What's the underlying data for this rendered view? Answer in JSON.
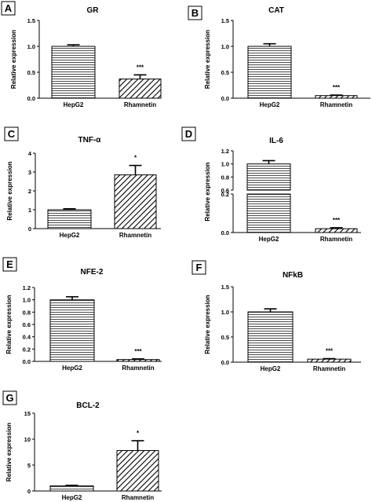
{
  "chart_data": [
    {
      "panel": "A",
      "type": "bar",
      "title": "GR",
      "ylabel": "Relative expression",
      "categories": [
        "HepG2",
        "Rhamnetin"
      ],
      "values": [
        1.0,
        0.37
      ],
      "errors": [
        0.03,
        0.08
      ],
      "patterns": [
        "horizontal",
        "diagonal"
      ],
      "significance": [
        "",
        "***"
      ],
      "ylim": [
        0,
        1.5
      ],
      "yticks": [
        "0.0",
        "0.5",
        "1.0",
        "1.5"
      ],
      "yticks_values": [
        0,
        0.5,
        1.0,
        1.5
      ]
    },
    {
      "panel": "B",
      "type": "bar",
      "title": "CAT",
      "ylabel": "Relative expression",
      "categories": [
        "HepG2",
        "Rhamnetin"
      ],
      "values": [
        1.0,
        0.05
      ],
      "errors": [
        0.05,
        0.01
      ],
      "patterns": [
        "horizontal",
        "diagonal"
      ],
      "significance": [
        "",
        "***"
      ],
      "ylim": [
        0,
        1.5
      ],
      "yticks": [
        "0.0",
        "0.5",
        "1.0",
        "1.5"
      ],
      "yticks_values": [
        0,
        0.5,
        1.0,
        1.5
      ]
    },
    {
      "panel": "C",
      "type": "bar",
      "title": "TNF-α",
      "ylabel": "Relative expression",
      "categories": [
        "HepG2",
        "Rhamnetin"
      ],
      "values": [
        1.0,
        2.85
      ],
      "errors": [
        0.05,
        0.5
      ],
      "patterns": [
        "horizontal",
        "diagonal"
      ],
      "significance": [
        "",
        "*"
      ],
      "ylim": [
        0,
        4
      ],
      "yticks": [
        "0",
        "1",
        "2",
        "3",
        "4"
      ],
      "yticks_values": [
        0,
        1,
        2,
        3,
        4
      ]
    },
    {
      "panel": "D",
      "type": "bar",
      "title": "IL-6",
      "ylabel": "Relative expression",
      "categories": [
        "HepG2",
        "Rhamnetin"
      ],
      "values": [
        1.0,
        0.02
      ],
      "errors": [
        0.05,
        0.005
      ],
      "patterns": [
        "horizontal",
        "diagonal"
      ],
      "significance": [
        "",
        "***"
      ],
      "broken_axis": true,
      "ylim": [
        0,
        1.2
      ],
      "yticks": [
        "0.0",
        "0.2",
        "0.6",
        "0.8",
        "1.0",
        "1.2"
      ],
      "yticks_values": [
        0,
        0.2,
        0.6,
        0.8,
        1.0,
        1.2
      ]
    },
    {
      "panel": "E",
      "type": "bar",
      "title": "NFE-2",
      "ylabel": "Relative expression",
      "categories": [
        "HepG2",
        "Rhamnetin"
      ],
      "values": [
        1.0,
        0.03
      ],
      "errors": [
        0.05,
        0.01
      ],
      "patterns": [
        "horizontal",
        "diagonal"
      ],
      "significance": [
        "",
        "***"
      ],
      "ylim": [
        0,
        1.2
      ],
      "yticks": [
        "0.0",
        "0.2",
        "0.4",
        "0.6",
        "0.8",
        "1.0",
        "1.2"
      ],
      "yticks_values": [
        0,
        0.2,
        0.4,
        0.6,
        0.8,
        1.0,
        1.2
      ]
    },
    {
      "panel": "F",
      "type": "bar",
      "title": "NFkB",
      "ylabel": "Relative expression",
      "categories": [
        "HepG2",
        "Rhamnetin"
      ],
      "values": [
        1.0,
        0.06
      ],
      "errors": [
        0.06,
        0.01
      ],
      "patterns": [
        "horizontal",
        "diagonal"
      ],
      "significance": [
        "",
        "***"
      ],
      "ylim": [
        0,
        1.5
      ],
      "yticks": [
        "0.0",
        "0.5",
        "1.0",
        "1.5"
      ],
      "yticks_values": [
        0,
        0.5,
        1.0,
        1.5
      ]
    },
    {
      "panel": "G",
      "type": "bar",
      "title": "BCL-2",
      "ylabel": "Relative expression",
      "categories": [
        "HepG2",
        "Rhamnetin"
      ],
      "values": [
        1.0,
        7.8
      ],
      "errors": [
        0.1,
        1.9
      ],
      "patterns": [
        "horizontal",
        "diagonal"
      ],
      "significance": [
        "",
        "*"
      ],
      "ylim": [
        0,
        15
      ],
      "yticks": [
        "0",
        "5",
        "10",
        "15"
      ],
      "yticks_values": [
        0,
        5,
        10,
        15
      ]
    }
  ]
}
